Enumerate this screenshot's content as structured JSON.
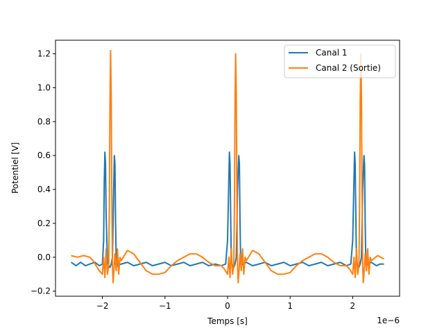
{
  "chart_data": {
    "type": "line",
    "xlabel": "Temps [s]",
    "ylabel": "Potentiel [V]",
    "x_offset_text": "1e−6",
    "xlim": [
      -2.75,
      2.75
    ],
    "ylim": [
      -0.23,
      1.28
    ],
    "x_ticks": [
      -2,
      -1,
      0,
      1,
      2
    ],
    "x_tick_labels": [
      "−2",
      "−1",
      "0",
      "1",
      "2"
    ],
    "y_ticks": [
      -0.2,
      0.0,
      0.2,
      0.4,
      0.6,
      0.8,
      1.0,
      1.2
    ],
    "y_tick_labels": [
      "−0.2",
      "0.0",
      "0.2",
      "0.4",
      "0.6",
      "0.8",
      "1.0",
      "1.2"
    ],
    "legend_position": "top-right",
    "grid": false,
    "series": [
      {
        "name": "Canal 1",
        "color": "#1f77b4",
        "x": [
          -2.5,
          -2.42,
          -2.35,
          -2.27,
          -2.2,
          -2.12,
          -2.05,
          -2.0,
          -1.98,
          -1.97,
          -1.96,
          -1.95,
          -1.94,
          -1.92,
          -1.9,
          -1.88,
          -1.86,
          -1.84,
          -1.82,
          -1.81,
          -1.8,
          -1.79,
          -1.78,
          -1.76,
          -1.7,
          -1.6,
          -1.5,
          -1.4,
          -1.3,
          -1.2,
          -1.1,
          -1.0,
          -0.9,
          -0.8,
          -0.7,
          -0.6,
          -0.5,
          -0.4,
          -0.3,
          -0.2,
          -0.1,
          -0.03,
          0.0,
          0.02,
          0.03,
          0.04,
          0.05,
          0.06,
          0.08,
          0.1,
          0.12,
          0.14,
          0.16,
          0.18,
          0.19,
          0.2,
          0.21,
          0.22,
          0.24,
          0.3,
          0.4,
          0.5,
          0.6,
          0.7,
          0.8,
          0.9,
          1.0,
          1.1,
          1.2,
          1.3,
          1.4,
          1.5,
          1.6,
          1.7,
          1.8,
          1.9,
          1.97,
          2.0,
          2.02,
          2.03,
          2.04,
          2.05,
          2.06,
          2.08,
          2.1,
          2.12,
          2.14,
          2.16,
          2.18,
          2.19,
          2.2,
          2.21,
          2.22,
          2.24,
          2.3,
          2.38,
          2.44,
          2.5
        ],
        "y": [
          -0.03,
          -0.05,
          -0.03,
          -0.05,
          -0.04,
          -0.03,
          -0.05,
          -0.04,
          0.1,
          0.45,
          0.62,
          0.55,
          0.25,
          -0.02,
          -0.05,
          -0.06,
          -0.04,
          0.0,
          0.4,
          0.6,
          0.55,
          0.2,
          -0.02,
          -0.05,
          -0.04,
          -0.03,
          -0.05,
          -0.04,
          -0.03,
          -0.05,
          -0.04,
          -0.03,
          -0.05,
          -0.04,
          -0.03,
          -0.05,
          -0.04,
          -0.03,
          -0.05,
          -0.04,
          -0.05,
          -0.04,
          0.1,
          0.45,
          0.62,
          0.55,
          0.25,
          -0.02,
          -0.05,
          -0.06,
          -0.04,
          0.0,
          0.4,
          0.6,
          0.55,
          0.2,
          -0.02,
          -0.05,
          -0.04,
          -0.03,
          -0.05,
          -0.04,
          -0.03,
          -0.05,
          -0.04,
          -0.03,
          -0.05,
          -0.04,
          -0.03,
          -0.05,
          -0.04,
          -0.03,
          -0.05,
          -0.04,
          -0.03,
          -0.05,
          -0.04,
          0.1,
          0.45,
          0.62,
          0.55,
          0.25,
          -0.02,
          -0.05,
          -0.06,
          -0.04,
          0.0,
          0.4,
          0.6,
          0.55,
          0.2,
          -0.02,
          -0.05,
          -0.04,
          -0.03,
          -0.05,
          -0.04,
          -0.04
        ]
      },
      {
        "name": "Canal 2 (Sortie)",
        "color": "#ff7f0e",
        "x": [
          -2.5,
          -2.4,
          -2.3,
          -2.2,
          -2.15,
          -2.1,
          -2.05,
          -2.0,
          -1.98,
          -1.96,
          -1.94,
          -1.92,
          -1.9,
          -1.89,
          -1.88,
          -1.87,
          -1.86,
          -1.85,
          -1.84,
          -1.83,
          -1.82,
          -1.8,
          -1.78,
          -1.76,
          -1.74,
          -1.72,
          -1.7,
          -1.6,
          -1.5,
          -1.4,
          -1.3,
          -1.2,
          -1.1,
          -1.0,
          -0.9,
          -0.8,
          -0.7,
          -0.6,
          -0.5,
          -0.4,
          -0.3,
          -0.2,
          -0.1,
          -0.05,
          0.0,
          0.02,
          0.04,
          0.06,
          0.08,
          0.1,
          0.11,
          0.12,
          0.13,
          0.14,
          0.15,
          0.16,
          0.17,
          0.18,
          0.2,
          0.22,
          0.24,
          0.26,
          0.28,
          0.3,
          0.4,
          0.5,
          0.6,
          0.7,
          0.8,
          0.9,
          1.0,
          1.1,
          1.2,
          1.3,
          1.4,
          1.5,
          1.6,
          1.7,
          1.8,
          1.9,
          1.95,
          2.0,
          2.02,
          2.04,
          2.06,
          2.08,
          2.1,
          2.11,
          2.12,
          2.13,
          2.14,
          2.15,
          2.16,
          2.17,
          2.18,
          2.2,
          2.22,
          2.24,
          2.26,
          2.28,
          2.3,
          2.4,
          2.5
        ],
        "y": [
          0.01,
          0.0,
          0.01,
          0.0,
          -0.02,
          -0.05,
          -0.08,
          -0.1,
          0.0,
          -0.12,
          0.05,
          -0.1,
          -0.05,
          0.3,
          0.9,
          1.22,
          0.95,
          0.35,
          -0.05,
          -0.15,
          -0.1,
          0.02,
          -0.08,
          0.05,
          -0.1,
          0.0,
          -0.02,
          0.04,
          0.02,
          -0.03,
          -0.08,
          -0.1,
          -0.1,
          -0.09,
          -0.05,
          -0.02,
          0.0,
          0.02,
          0.02,
          0.0,
          -0.03,
          -0.05,
          -0.05,
          -0.07,
          -0.1,
          0.0,
          -0.12,
          0.05,
          -0.1,
          -0.05,
          0.3,
          0.9,
          1.2,
          0.95,
          0.35,
          -0.05,
          -0.15,
          -0.1,
          0.02,
          -0.08,
          0.05,
          -0.1,
          0.0,
          -0.02,
          0.04,
          0.02,
          -0.03,
          -0.08,
          -0.1,
          -0.1,
          -0.09,
          -0.05,
          -0.02,
          0.0,
          0.02,
          0.02,
          0.0,
          -0.03,
          -0.05,
          -0.05,
          -0.07,
          -0.1,
          0.0,
          -0.12,
          0.05,
          -0.1,
          -0.05,
          0.3,
          0.9,
          1.2,
          0.95,
          0.35,
          -0.05,
          -0.15,
          -0.1,
          0.02,
          -0.08,
          0.05,
          -0.1,
          0.0,
          -0.02,
          0.01,
          -0.01
        ]
      }
    ]
  }
}
